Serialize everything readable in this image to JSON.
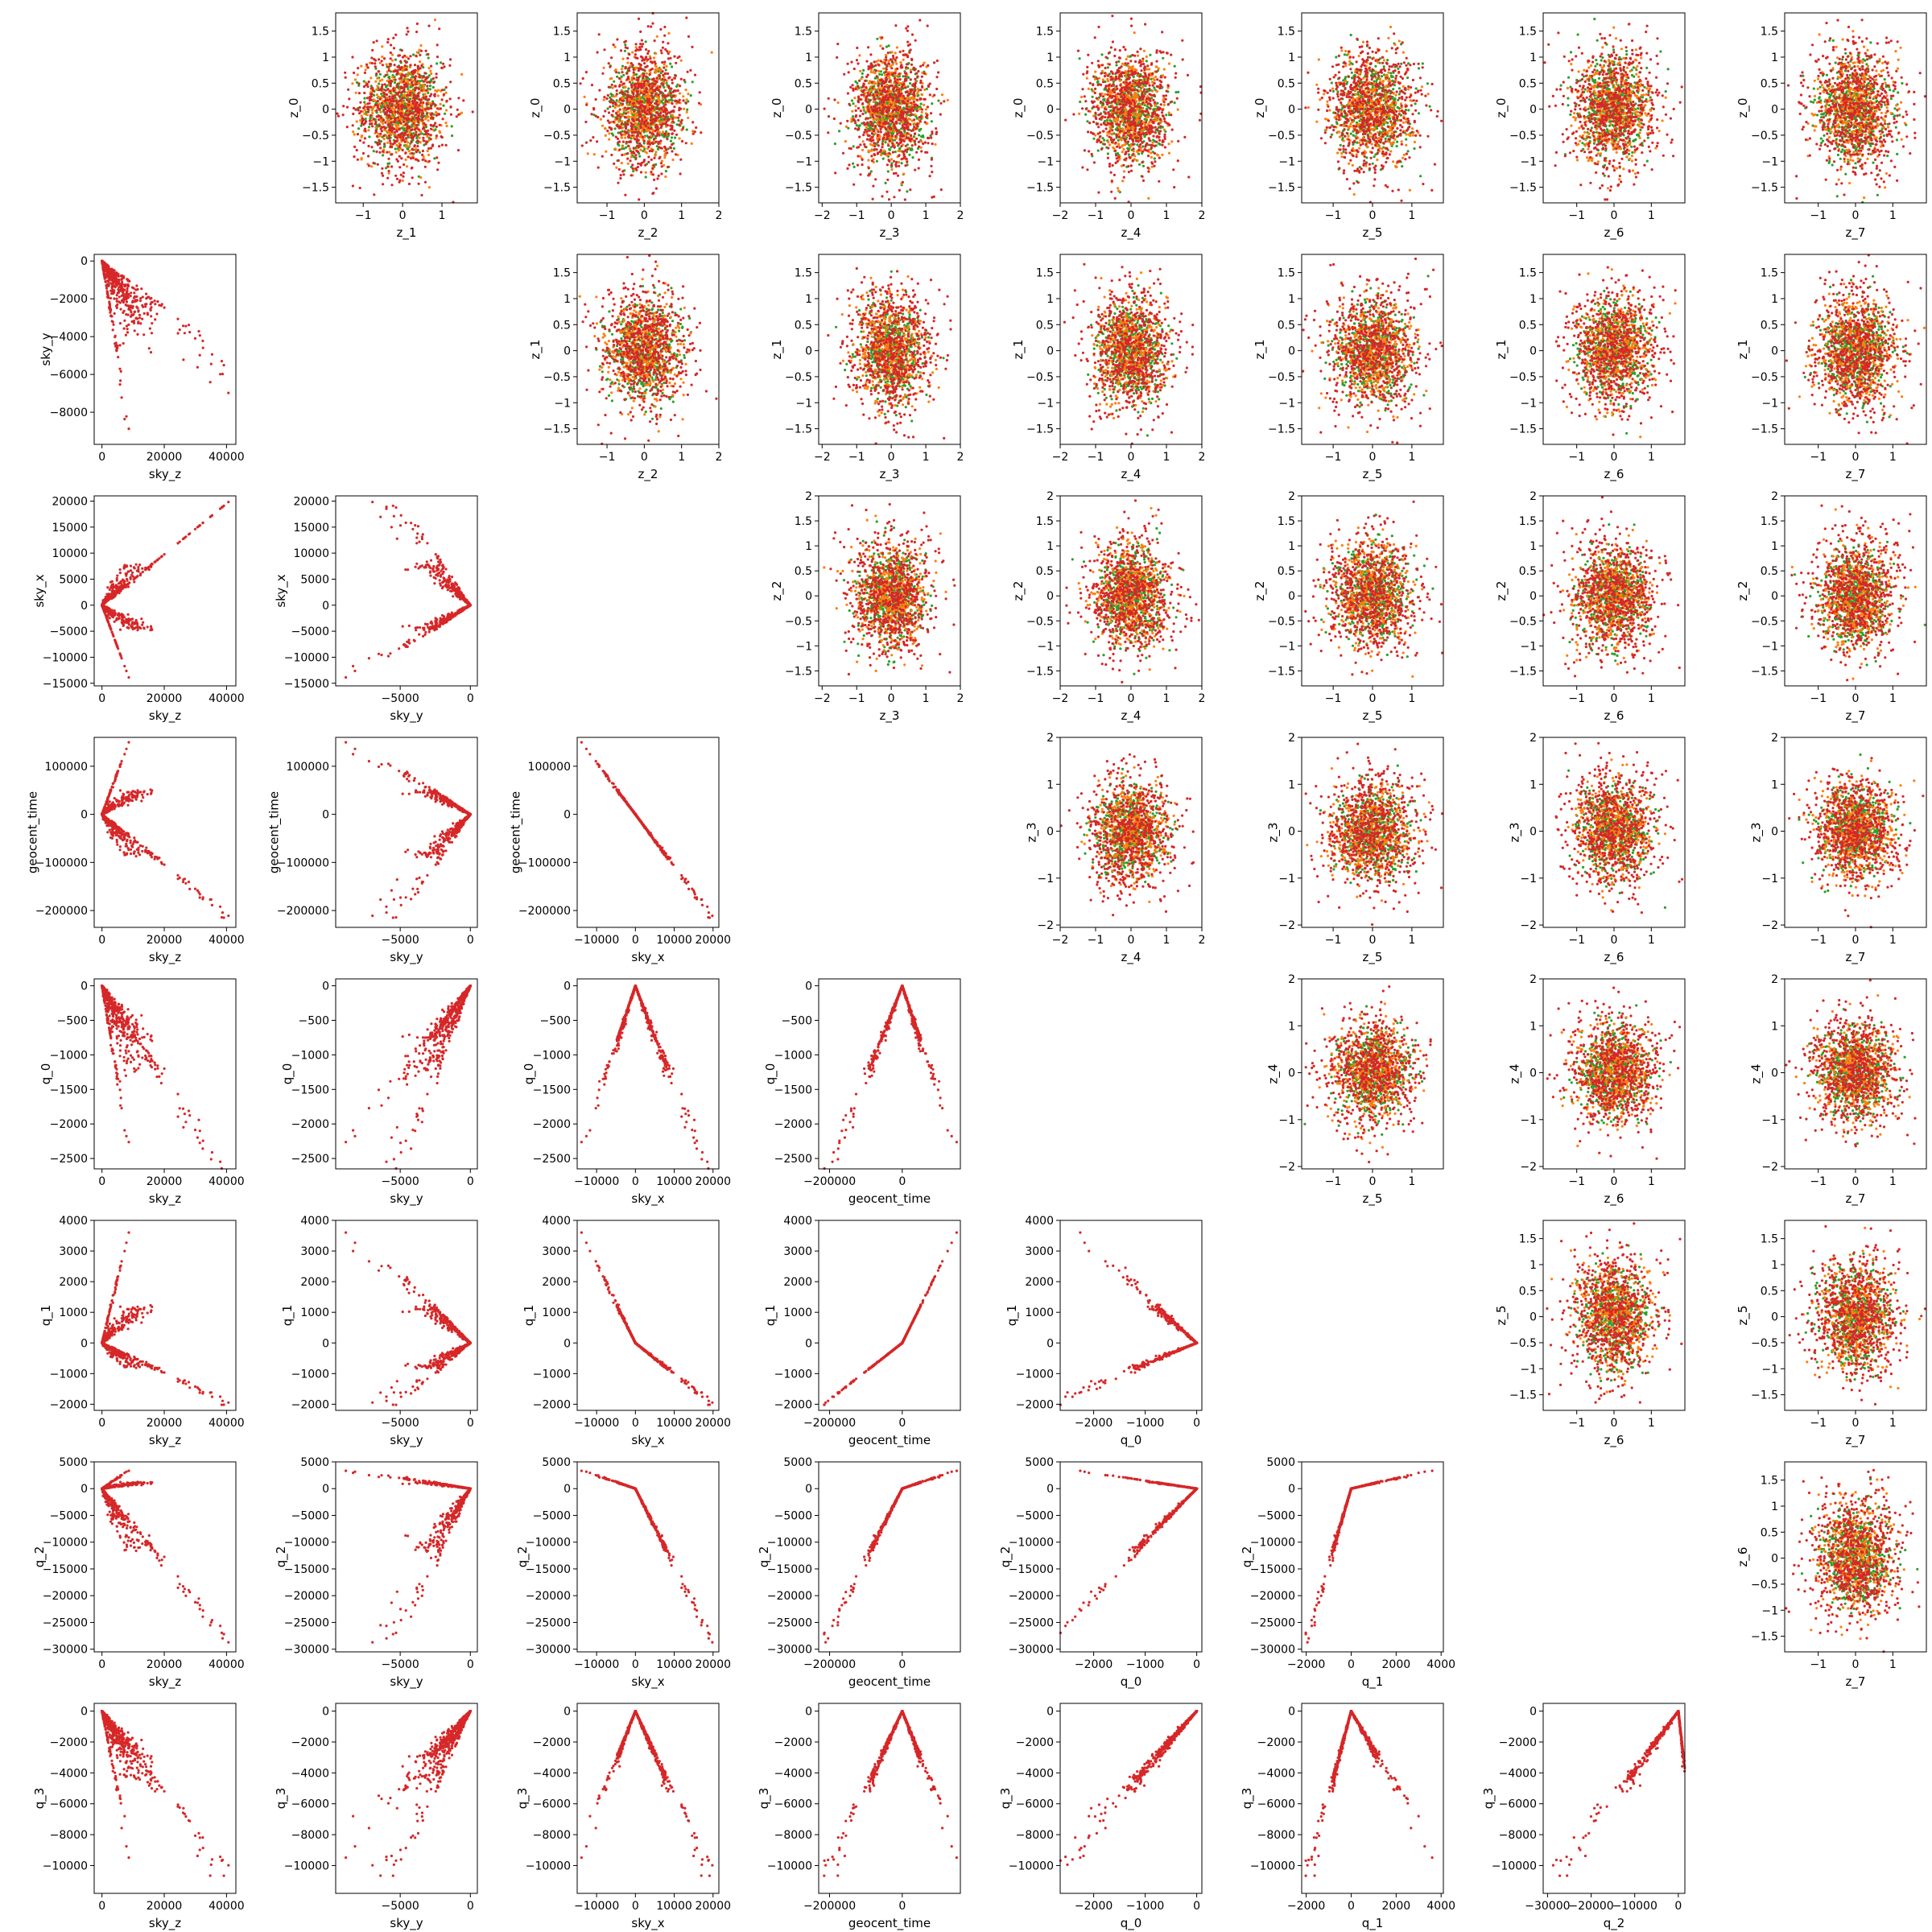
{
  "figure": {
    "point_colors": {
      "green": "#2ca02c",
      "orange": "#ff7f0e",
      "red": "#d62728"
    },
    "frame_color": "#000000"
  },
  "chart_data": {
    "type": "scatter",
    "layout": "9x9 pair-plot grid; upper triangle = latent z pairs (green/orange/red overlay), lower triangle = q/sky/geocent_time pairs (red)",
    "latent_axis_ticks": {
      "lim_1_5": [
        -1.5,
        -1.0,
        -0.5,
        0.0,
        0.5,
        1.0,
        1.5
      ],
      "lim_2_0": [
        -1.5,
        -1.0,
        -0.5,
        0.0,
        0.5,
        1.0,
        1.5,
        2.0
      ],
      "int_2": [
        -2,
        -1,
        0,
        1,
        2
      ],
      "int_1": [
        -1,
        0,
        1
      ]
    },
    "upper_panels": [
      {
        "row": 0,
        "col": 1,
        "x": "z_1",
        "y": "z_0",
        "xlim": [
          -1.7,
          1.9
        ],
        "ylim": [
          -1.8,
          1.85
        ],
        "xticks": [
          -1,
          0,
          1
        ],
        "yticks": "lim_1_5"
      },
      {
        "row": 0,
        "col": 2,
        "x": "z_2",
        "y": "z_0",
        "xlim": [
          -1.8,
          2.0
        ],
        "ylim": [
          -1.8,
          1.85
        ],
        "xticks": [
          -1,
          0,
          1,
          2
        ],
        "yticks": "lim_1_5"
      },
      {
        "row": 0,
        "col": 3,
        "x": "z_3",
        "y": "z_0",
        "xlim": [
          -2.1,
          2.0
        ],
        "ylim": [
          -1.8,
          1.85
        ],
        "xticks": "int_2",
        "yticks": "lim_1_5"
      },
      {
        "row": 0,
        "col": 4,
        "x": "z_4",
        "y": "z_0",
        "xlim": [
          -2.0,
          2.0
        ],
        "ylim": [
          -1.8,
          1.85
        ],
        "xticks": "int_2",
        "yticks": "lim_1_5"
      },
      {
        "row": 0,
        "col": 5,
        "x": "z_5",
        "y": "z_0",
        "xlim": [
          -1.8,
          1.8
        ],
        "ylim": [
          -1.8,
          1.85
        ],
        "xticks": "int_1",
        "yticks": "lim_1_5"
      },
      {
        "row": 0,
        "col": 6,
        "x": "z_6",
        "y": "z_0",
        "xlim": [
          -1.9,
          1.9
        ],
        "ylim": [
          -1.8,
          1.85
        ],
        "xticks": "int_1",
        "yticks": "lim_1_5"
      },
      {
        "row": 0,
        "col": 7,
        "x": "z_7",
        "y": "z_0",
        "xlim": [
          -1.9,
          1.9
        ],
        "ylim": [
          -1.8,
          1.85
        ],
        "xticks": "int_1",
        "yticks": "lim_1_5"
      },
      {
        "row": 1,
        "col": 2,
        "x": "z_2",
        "y": "z_1",
        "xlim": [
          -1.8,
          2.0
        ],
        "ylim": [
          -1.8,
          1.85
        ],
        "xticks": [
          -1,
          0,
          1,
          2
        ],
        "yticks": "lim_1_5"
      },
      {
        "row": 1,
        "col": 3,
        "x": "z_3",
        "y": "z_1",
        "xlim": [
          -2.1,
          2.0
        ],
        "ylim": [
          -1.8,
          1.85
        ],
        "xticks": "int_2",
        "yticks": "lim_1_5"
      },
      {
        "row": 1,
        "col": 4,
        "x": "z_4",
        "y": "z_1",
        "xlim": [
          -2.0,
          2.0
        ],
        "ylim": [
          -1.8,
          1.85
        ],
        "xticks": "int_2",
        "yticks": "lim_1_5"
      },
      {
        "row": 1,
        "col": 5,
        "x": "z_5",
        "y": "z_1",
        "xlim": [
          -1.8,
          1.8
        ],
        "ylim": [
          -1.8,
          1.85
        ],
        "xticks": "int_1",
        "yticks": "lim_1_5"
      },
      {
        "row": 1,
        "col": 6,
        "x": "z_6",
        "y": "z_1",
        "xlim": [
          -1.9,
          1.9
        ],
        "ylim": [
          -1.8,
          1.85
        ],
        "xticks": "int_1",
        "yticks": "lim_1_5"
      },
      {
        "row": 1,
        "col": 7,
        "x": "z_7",
        "y": "z_1",
        "xlim": [
          -1.9,
          1.9
        ],
        "ylim": [
          -1.8,
          1.85
        ],
        "xticks": "int_1",
        "yticks": "lim_1_5"
      },
      {
        "row": 2,
        "col": 3,
        "x": "z_3",
        "y": "z_2",
        "xlim": [
          -2.1,
          2.0
        ],
        "ylim": [
          -1.8,
          2.0
        ],
        "xticks": "int_2",
        "yticks": "lim_2_0"
      },
      {
        "row": 2,
        "col": 4,
        "x": "z_4",
        "y": "z_2",
        "xlim": [
          -2.0,
          2.0
        ],
        "ylim": [
          -1.8,
          2.0
        ],
        "xticks": "int_2",
        "yticks": "lim_2_0"
      },
      {
        "row": 2,
        "col": 5,
        "x": "z_5",
        "y": "z_2",
        "xlim": [
          -1.8,
          1.8
        ],
        "ylim": [
          -1.8,
          2.0
        ],
        "xticks": "int_1",
        "yticks": "lim_2_0"
      },
      {
        "row": 2,
        "col": 6,
        "x": "z_6",
        "y": "z_2",
        "xlim": [
          -1.9,
          1.9
        ],
        "ylim": [
          -1.8,
          2.0
        ],
        "xticks": "int_1",
        "yticks": "lim_2_0"
      },
      {
        "row": 2,
        "col": 7,
        "x": "z_7",
        "y": "z_2",
        "xlim": [
          -1.9,
          1.9
        ],
        "ylim": [
          -1.8,
          2.0
        ],
        "xticks": "int_1",
        "yticks": "lim_2_0"
      },
      {
        "row": 3,
        "col": 4,
        "x": "z_4",
        "y": "z_3",
        "xlim": [
          -2.0,
          2.0
        ],
        "ylim": [
          -2.05,
          2.0
        ],
        "xticks": "int_2",
        "yticks": "int_2"
      },
      {
        "row": 3,
        "col": 5,
        "x": "z_5",
        "y": "z_3",
        "xlim": [
          -1.8,
          1.8
        ],
        "ylim": [
          -2.05,
          2.0
        ],
        "xticks": "int_1",
        "yticks": "int_2"
      },
      {
        "row": 3,
        "col": 6,
        "x": "z_6",
        "y": "z_3",
        "xlim": [
          -1.9,
          1.9
        ],
        "ylim": [
          -2.05,
          2.0
        ],
        "xticks": "int_1",
        "yticks": "int_2"
      },
      {
        "row": 3,
        "col": 7,
        "x": "z_7",
        "y": "z_3",
        "xlim": [
          -1.9,
          1.9
        ],
        "ylim": [
          -2.05,
          2.0
        ],
        "xticks": "int_1",
        "yticks": "int_2"
      },
      {
        "row": 4,
        "col": 5,
        "x": "z_5",
        "y": "z_4",
        "xlim": [
          -1.8,
          1.8
        ],
        "ylim": [
          -2.05,
          2.0
        ],
        "xticks": "int_1",
        "yticks": "int_2"
      },
      {
        "row": 4,
        "col": 6,
        "x": "z_6",
        "y": "z_4",
        "xlim": [
          -1.9,
          1.9
        ],
        "ylim": [
          -2.05,
          2.0
        ],
        "xticks": "int_1",
        "yticks": "int_2"
      },
      {
        "row": 4,
        "col": 7,
        "x": "z_7",
        "y": "z_4",
        "xlim": [
          -1.9,
          1.9
        ],
        "ylim": [
          -2.05,
          2.0
        ],
        "xticks": "int_1",
        "yticks": "int_2"
      },
      {
        "row": 5,
        "col": 6,
        "x": "z_6",
        "y": "z_5",
        "xlim": [
          -1.9,
          1.9
        ],
        "ylim": [
          -1.8,
          1.85
        ],
        "xticks": "int_1",
        "yticks": "lim_1_5"
      },
      {
        "row": 5,
        "col": 7,
        "x": "z_7",
        "y": "z_5",
        "xlim": [
          -1.9,
          1.9
        ],
        "ylim": [
          -1.8,
          1.85
        ],
        "xticks": "int_1",
        "yticks": "lim_1_5"
      },
      {
        "row": 6,
        "col": 7,
        "x": "z_7",
        "y": "z_6",
        "xlim": [
          -1.9,
          1.9
        ],
        "ylim": [
          -1.8,
          1.85
        ],
        "xticks": "int_1",
        "yticks": "lim_1_5"
      }
    ],
    "axes": {
      "sky_z": {
        "lim": [
          -2500,
          43000
        ],
        "ticks": [
          0,
          20000,
          40000
        ]
      },
      "sky_y": {
        "lim": [
          -9600,
          500
        ],
        "ticks": [
          -5000,
          0
        ]
      },
      "sky_x": {
        "lim": [
          -15000,
          21500
        ],
        "ticks": [
          -10000,
          0,
          10000,
          20000
        ]
      },
      "geocent_time": {
        "lim": [
          -230000,
          160000
        ],
        "ticks": [
          -200000,
          0
        ]
      },
      "q_0": {
        "lim": [
          -2650,
          100
        ],
        "ticks": [
          -2000,
          -1000,
          0
        ]
      },
      "q_1": {
        "lim": [
          -2200,
          4100
        ],
        "ticks": [
          -2000,
          0,
          2000,
          4000
        ]
      },
      "q_2": {
        "lim": [
          -31000,
          1500
        ],
        "ticks": [
          -30000,
          -20000,
          -10000,
          0
        ]
      }
    },
    "y_axes": {
      "sky_y": {
        "lim": [
          -9700,
          350
        ],
        "ticks": [
          0,
          -2000,
          -4000,
          -6000,
          -8000
        ]
      },
      "sky_x": {
        "lim": [
          -15500,
          21000
        ],
        "ticks": [
          20000,
          15000,
          10000,
          5000,
          0,
          -5000,
          -10000,
          -15000
        ]
      },
      "geocent_time": {
        "lim": [
          -235000,
          160000
        ],
        "ticks": [
          100000,
          0,
          -100000,
          -200000
        ]
      },
      "q_0": {
        "lim": [
          -2650,
          100
        ],
        "ticks": [
          0,
          -500,
          -1000,
          -1500,
          -2000,
          -2500
        ]
      },
      "q_1": {
        "lim": [
          -2200,
          4000
        ],
        "ticks": [
          4000,
          3000,
          2000,
          1000,
          0,
          -1000,
          -2000
        ]
      },
      "q_2": {
        "lim": [
          -30500,
          5000
        ],
        "ticks": [
          5000,
          0,
          -5000,
          -10000,
          -15000,
          -20000,
          -25000,
          -30000
        ]
      },
      "q_3": {
        "lim": [
          -11800,
          500
        ],
        "ticks": [
          0,
          -2000,
          -4000,
          -6000,
          -8000,
          -10000
        ]
      }
    },
    "lower_panels": [
      {
        "row": 1,
        "col": 0,
        "x": "sky_z",
        "y": "sky_y"
      },
      {
        "row": 2,
        "col": 0,
        "x": "sky_z",
        "y": "sky_x"
      },
      {
        "row": 2,
        "col": 1,
        "x": "sky_y",
        "y": "sky_x"
      },
      {
        "row": 3,
        "col": 0,
        "x": "sky_z",
        "y": "geocent_time"
      },
      {
        "row": 3,
        "col": 1,
        "x": "sky_y",
        "y": "geocent_time"
      },
      {
        "row": 3,
        "col": 2,
        "x": "sky_x",
        "y": "geocent_time"
      },
      {
        "row": 4,
        "col": 0,
        "x": "sky_z",
        "y": "q_0"
      },
      {
        "row": 4,
        "col": 1,
        "x": "sky_y",
        "y": "q_0"
      },
      {
        "row": 4,
        "col": 2,
        "x": "sky_x",
        "y": "q_0"
      },
      {
        "row": 4,
        "col": 3,
        "x": "geocent_time",
        "y": "q_0"
      },
      {
        "row": 5,
        "col": 0,
        "x": "sky_z",
        "y": "q_1"
      },
      {
        "row": 5,
        "col": 1,
        "x": "sky_y",
        "y": "q_1"
      },
      {
        "row": 5,
        "col": 2,
        "x": "sky_x",
        "y": "q_1"
      },
      {
        "row": 5,
        "col": 3,
        "x": "geocent_time",
        "y": "q_1"
      },
      {
        "row": 5,
        "col": 4,
        "x": "q_0",
        "y": "q_1"
      },
      {
        "row": 6,
        "col": 0,
        "x": "sky_z",
        "y": "q_2"
      },
      {
        "row": 6,
        "col": 1,
        "x": "sky_y",
        "y": "q_2"
      },
      {
        "row": 6,
        "col": 2,
        "x": "sky_x",
        "y": "q_2"
      },
      {
        "row": 6,
        "col": 3,
        "x": "geocent_time",
        "y": "q_2"
      },
      {
        "row": 6,
        "col": 4,
        "x": "q_0",
        "y": "q_2"
      },
      {
        "row": 6,
        "col": 5,
        "x": "q_1",
        "y": "q_2"
      },
      {
        "row": 7,
        "col": 0,
        "x": "sky_z",
        "y": "q_3"
      },
      {
        "row": 7,
        "col": 1,
        "x": "sky_y",
        "y": "q_3"
      },
      {
        "row": 7,
        "col": 2,
        "x": "sky_x",
        "y": "q_3"
      },
      {
        "row": 7,
        "col": 3,
        "x": "geocent_time",
        "y": "q_3"
      },
      {
        "row": 7,
        "col": 4,
        "x": "q_0",
        "y": "q_3"
      },
      {
        "row": 7,
        "col": 5,
        "x": "q_1",
        "y": "q_3"
      },
      {
        "row": 7,
        "col": 6,
        "x": "q_2",
        "y": "q_3"
      }
    ],
    "lower_extremes": {
      "sky_z": 41000,
      "sky_y": -9000,
      "sky_x_pos": 20000,
      "sky_x_neg": -14500,
      "geocent_time_pos": 150000,
      "geocent_time_neg": -225000,
      "q_0": -2550,
      "q_1_pos": 3800,
      "q_1_neg": -2000,
      "q_2_pos": 3600,
      "q_2_neg": -29000,
      "q_3": -11300
    },
    "upper_series": [
      {
        "color": "green",
        "std": 0.45,
        "count": 500
      },
      {
        "color": "orange",
        "std": 0.5,
        "count": 450
      },
      {
        "color": "red",
        "std": 0.62,
        "count": 650
      }
    ]
  }
}
